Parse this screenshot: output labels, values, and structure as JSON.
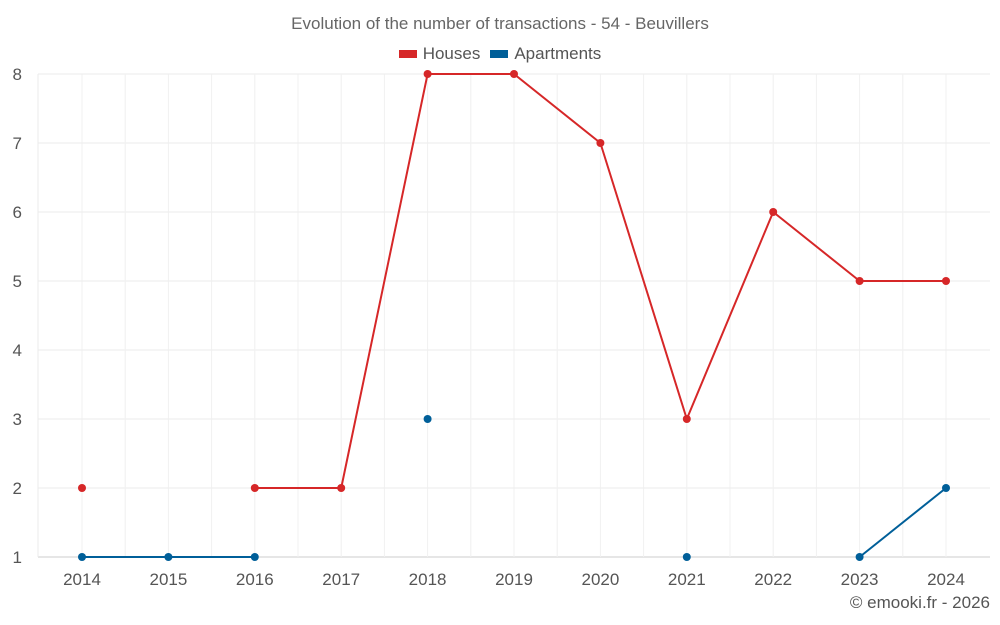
{
  "chart_data": {
    "type": "line",
    "title": "Evolution of the number of transactions - 54 - Beuvillers",
    "categories": [
      "2014",
      "2015",
      "2016",
      "2017",
      "2018",
      "2019",
      "2020",
      "2021",
      "2022",
      "2023",
      "2024"
    ],
    "series": [
      {
        "name": "Houses",
        "color": "#d62728",
        "values": [
          2,
          null,
          2,
          2,
          8,
          8,
          7,
          3,
          6,
          5,
          5
        ]
      },
      {
        "name": "Apartments",
        "color": "#005f99",
        "values": [
          1,
          1,
          1,
          null,
          3,
          null,
          null,
          1,
          null,
          1,
          2
        ]
      }
    ],
    "yticks": [
      1,
      2,
      3,
      4,
      5,
      6,
      7,
      8
    ],
    "ylim": [
      1,
      8
    ],
    "xlabel": "",
    "ylabel": "",
    "legend_position": "top-center",
    "grid": true
  },
  "credit": "© emooki.fr - 2026"
}
